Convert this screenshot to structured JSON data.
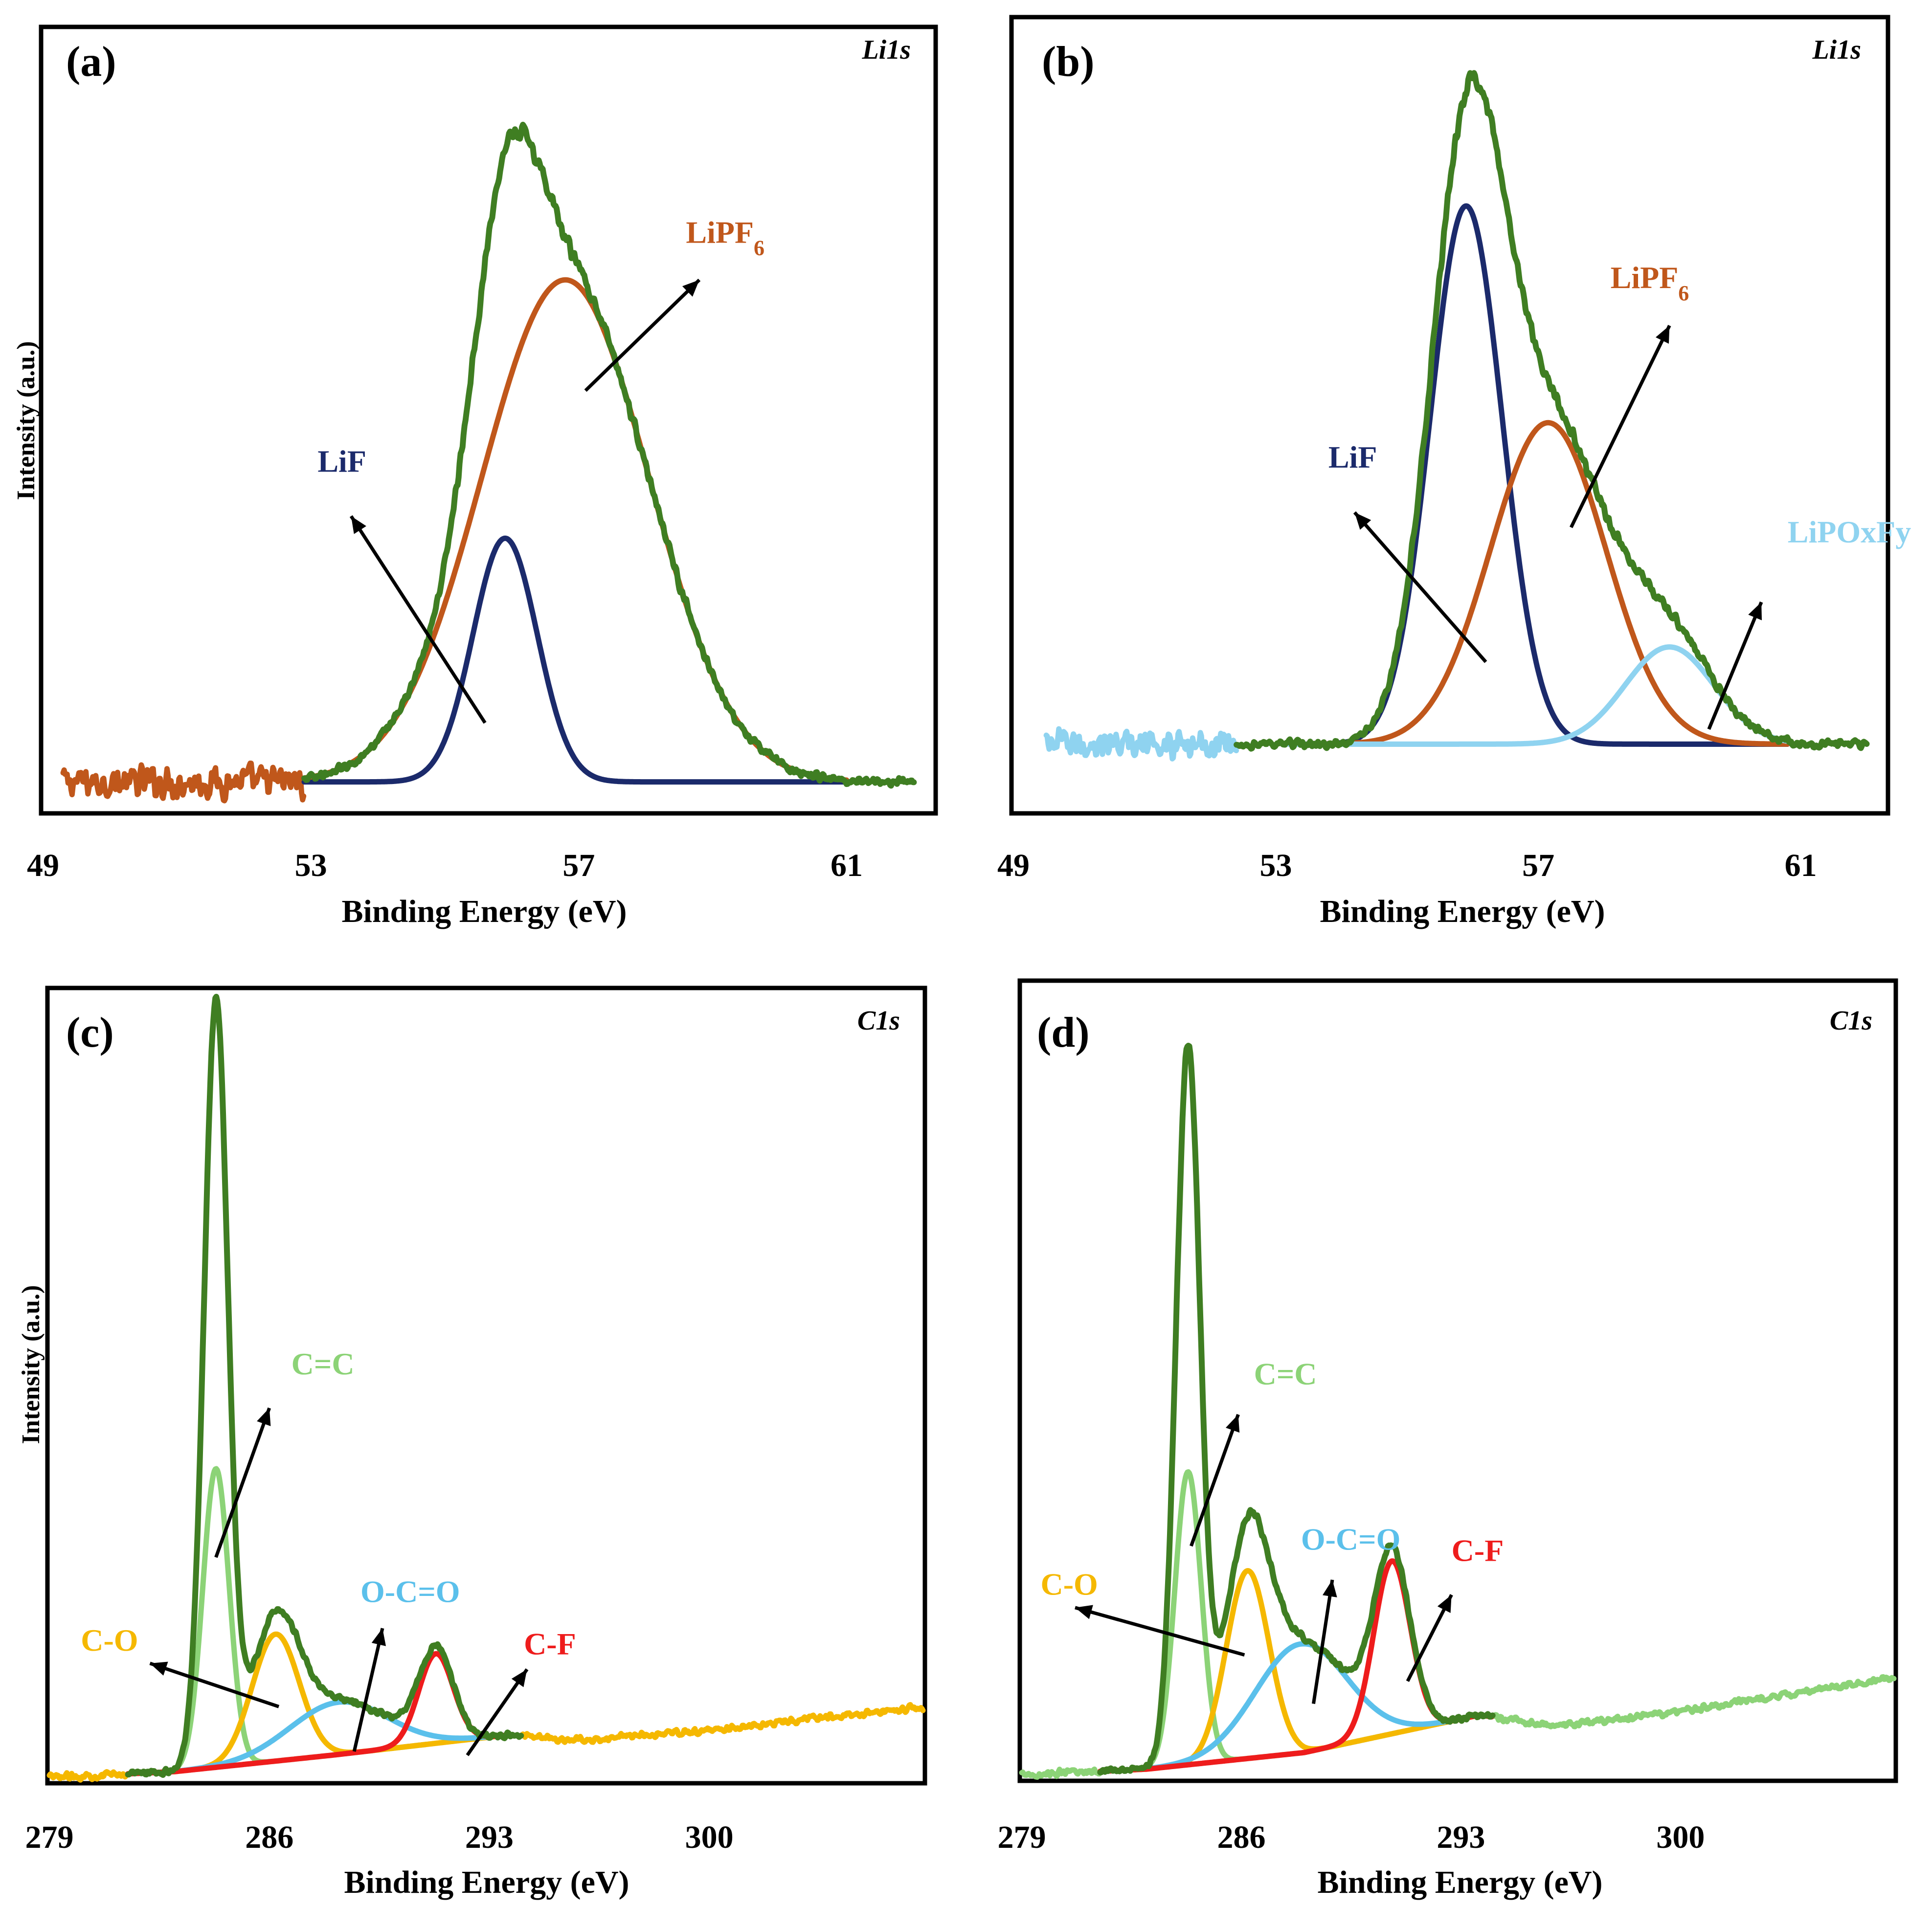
{
  "colors": {
    "envelope": "#3f7e22",
    "lif": "#1b2a6b",
    "lipf6": "#c0571b",
    "lipoxfy": "#8fd3f0",
    "cc": "#8cd377",
    "co": "#f5b800",
    "ocO": "#5bc0eb",
    "cf": "#ee1c1c",
    "frame": "#000000"
  },
  "chart_data": [
    {
      "id": "a",
      "panel_label": "(a)",
      "core_level": "Li1s",
      "type": "line",
      "xlabel": "Binding Energy (eV)",
      "ylabel": "Intensity (a.u.)",
      "xlim": [
        49,
        62.3
      ],
      "ylim": [
        0,
        1.06
      ],
      "xticks": [
        "49",
        "53",
        "57",
        "61"
      ],
      "xtick_values": [
        49,
        53,
        57,
        61
      ],
      "baseline": 0.04,
      "noise_range": [
        49.3,
        62.0
      ],
      "noise_amp": 0.018,
      "envelope_range": [
        52.9,
        62.0
      ],
      "envelope_noise": 0.012,
      "series": [
        {
          "name": "LiF",
          "color_key": "lif",
          "center": 55.9,
          "sigma": 0.48,
          "height": 0.33,
          "range": [
            52.9,
            61.0
          ],
          "width": 11
        },
        {
          "name": "LiPF6",
          "color_key": "lipf6",
          "center": 56.8,
          "sigma": 1.25,
          "height": 0.68,
          "range": [
            52.9,
            61.0
          ],
          "width": 11
        }
      ],
      "annotations": [
        {
          "text": "LiF",
          "color_key": "lif",
          "x": 53.1,
          "y": 0.46,
          "arrow_from": [
            55.6,
            0.12
          ],
          "arrow_to": [
            53.6,
            0.4
          ]
        },
        {
          "text": "LiPF",
          "sub": "6",
          "color_key": "lipf6",
          "x": 58.6,
          "y": 0.77,
          "arrow_from": [
            57.1,
            0.57
          ],
          "arrow_to": [
            58.8,
            0.72
          ]
        }
      ]
    },
    {
      "id": "b",
      "panel_label": "(b)",
      "core_level": "Li1s",
      "type": "line",
      "xlabel": "Binding Energy (eV)",
      "ylabel": "",
      "xlim": [
        49,
        62.3
      ],
      "ylim": [
        0,
        1.06
      ],
      "xticks": [
        "49",
        "53",
        "57",
        "61"
      ],
      "xtick_values": [
        49,
        53,
        57,
        61
      ],
      "baseline": 0.09,
      "noise_range": [
        49.5,
        62.0
      ],
      "noise_amp": 0.016,
      "envelope_range": [
        52.4,
        62.0
      ],
      "envelope_noise": 0.012,
      "series": [
        {
          "name": "LiF",
          "color_key": "lif",
          "center": 55.9,
          "sigma": 0.55,
          "height": 0.72,
          "range": [
            53.2,
            60.8
          ],
          "width": 11
        },
        {
          "name": "LiPF6",
          "color_key": "lipf6",
          "center": 57.15,
          "sigma": 0.88,
          "height": 0.43,
          "range": [
            53.2,
            60.8
          ],
          "width": 11
        },
        {
          "name": "LiPOxFy",
          "color_key": "lipoxfy",
          "center": 59.0,
          "sigma": 0.68,
          "height": 0.13,
          "range": [
            53.2,
            60.8
          ],
          "width": 11
        }
      ],
      "annotations": [
        {
          "text": "LiF",
          "color_key": "lif",
          "x": 53.8,
          "y": 0.46,
          "arrow_from": [
            56.2,
            0.2
          ],
          "arrow_to": [
            54.2,
            0.4
          ]
        },
        {
          "text": "LiPF",
          "sub": "6",
          "color_key": "lipf6",
          "x": 58.1,
          "y": 0.7,
          "arrow_from": [
            57.5,
            0.38
          ],
          "arrow_to": [
            59.0,
            0.65
          ]
        },
        {
          "text": "LiPOxFy",
          "color_key": "lipoxfy",
          "x": 60.8,
          "y": 0.36,
          "arrow_from": [
            59.6,
            0.11
          ],
          "arrow_to": [
            60.4,
            0.28
          ]
        }
      ]
    },
    {
      "id": "c",
      "panel_label": "(c)",
      "core_level": "C1s",
      "type": "line",
      "xlabel": "Binding Energy (eV)",
      "ylabel": "Intensity (a.u.)",
      "xlim": [
        279,
        306.8
      ],
      "ylim": [
        0,
        1.06
      ],
      "xticks": [
        "279",
        "286",
        "293",
        "300"
      ],
      "xtick_values": [
        279,
        286,
        293,
        300
      ],
      "background": {
        "x": [
          279.0,
          283.0,
          288.0,
          293.6,
          296.0,
          300.0,
          306.8
        ],
        "y": [
          0.005,
          0.013,
          0.035,
          0.062,
          0.055,
          0.068,
          0.1
        ]
      },
      "noise_range": [
        279.0,
        306.8
      ],
      "noise_amp": 0.006,
      "envelope_range": [
        281.5,
        294.0
      ],
      "envelope_noise": 0.008,
      "series": [
        {
          "name": "C=C",
          "color_key": "cc",
          "center": 284.3,
          "sigma": 0.42,
          "height": 0.4,
          "range": [
            281.5,
            291.0
          ],
          "width": 11
        },
        {
          "name": "C-O",
          "color_key": "co",
          "center": 286.2,
          "sigma": 0.75,
          "height": 0.17,
          "range": [
            281.5,
            294.0
          ],
          "width": 11
        },
        {
          "name": "O-C=O",
          "color_key": "ocO",
          "center": 288.2,
          "sigma": 1.55,
          "height": 0.07,
          "range": [
            281.5,
            294.0
          ],
          "width": 11
        },
        {
          "name": "C-F",
          "color_key": "cf",
          "center": 291.3,
          "sigma": 0.55,
          "height": 0.12,
          "range": [
            281.5,
            294.0
          ],
          "width": 11
        }
      ],
      "main_peak": {
        "center": 284.3,
        "sigma": 0.36,
        "height": 0.62
      },
      "annotations": [
        {
          "text": "C=C",
          "color_key": "cc",
          "x": 286.7,
          "y": 0.545,
          "arrow_from": [
            284.3,
            0.3
          ],
          "arrow_to": [
            286.0,
            0.5
          ]
        },
        {
          "text": "C-O",
          "color_key": "co",
          "x": 280.0,
          "y": 0.175,
          "arrow_from": [
            286.3,
            0.1
          ],
          "arrow_to": [
            282.2,
            0.158
          ]
        },
        {
          "text": "O-C=O",
          "color_key": "ocO",
          "x": 288.9,
          "y": 0.24,
          "arrow_from": [
            288.7,
            0.04
          ],
          "arrow_to": [
            289.6,
            0.205
          ]
        },
        {
          "text": "C-F",
          "color_key": "cf",
          "x": 294.1,
          "y": 0.17,
          "arrow_from": [
            292.3,
            0.035
          ],
          "arrow_to": [
            294.2,
            0.15
          ]
        }
      ]
    },
    {
      "id": "d",
      "panel_label": "(d)",
      "core_level": "C1s",
      "type": "line",
      "xlabel": "Binding Energy (eV)",
      "ylabel": "",
      "xlim": [
        279,
        306.8
      ],
      "ylim": [
        0,
        1.06
      ],
      "xticks": [
        "279",
        "286",
        "293",
        "300"
      ],
      "xtick_values": [
        279,
        286,
        293,
        300
      ],
      "background": {
        "x": [
          279.0,
          283.0,
          288.0,
          293.6,
          296.0,
          300.0,
          306.8
        ],
        "y": [
          0.005,
          0.013,
          0.035,
          0.085,
          0.07,
          0.09,
          0.135
        ]
      },
      "noise_range": [
        279.0,
        306.8
      ],
      "noise_amp": 0.006,
      "envelope_range": [
        281.5,
        294.0
      ],
      "envelope_noise": 0.008,
      "series": [
        {
          "name": "C=C",
          "color_key": "cc",
          "center": 284.3,
          "sigma": 0.42,
          "height": 0.39,
          "range": [
            281.5,
            291.0
          ],
          "width": 11
        },
        {
          "name": "C-O",
          "color_key": "co",
          "center": 286.2,
          "sigma": 0.68,
          "height": 0.25,
          "range": [
            281.5,
            294.0
          ],
          "width": 11
        },
        {
          "name": "O-C=O",
          "color_key": "ocO",
          "center": 287.9,
          "sigma": 1.45,
          "height": 0.145,
          "range": [
            281.5,
            294.0
          ],
          "width": 11
        },
        {
          "name": "C-F",
          "color_key": "cf",
          "center": 290.8,
          "sigma": 0.58,
          "height": 0.23,
          "range": [
            281.5,
            294.0
          ],
          "width": 11
        }
      ],
      "main_peak": {
        "center": 284.3,
        "sigma": 0.36,
        "height": 0.56
      },
      "annotations": [
        {
          "text": "C=C",
          "color_key": "cc",
          "x": 286.4,
          "y": 0.525,
          "arrow_from": [
            284.4,
            0.31
          ],
          "arrow_to": [
            285.9,
            0.485
          ]
        },
        {
          "text": "C-O",
          "color_key": "co",
          "x": 279.6,
          "y": 0.245,
          "arrow_from": [
            286.1,
            0.165
          ],
          "arrow_to": [
            280.7,
            0.228
          ]
        },
        {
          "text": "O-C=O",
          "color_key": "ocO",
          "x": 287.9,
          "y": 0.305,
          "arrow_from": [
            288.3,
            0.1
          ],
          "arrow_to": [
            288.9,
            0.265
          ]
        },
        {
          "text": "C-F",
          "color_key": "cf",
          "x": 292.7,
          "y": 0.29,
          "arrow_from": [
            291.3,
            0.13
          ],
          "arrow_to": [
            292.7,
            0.245
          ]
        }
      ]
    }
  ]
}
